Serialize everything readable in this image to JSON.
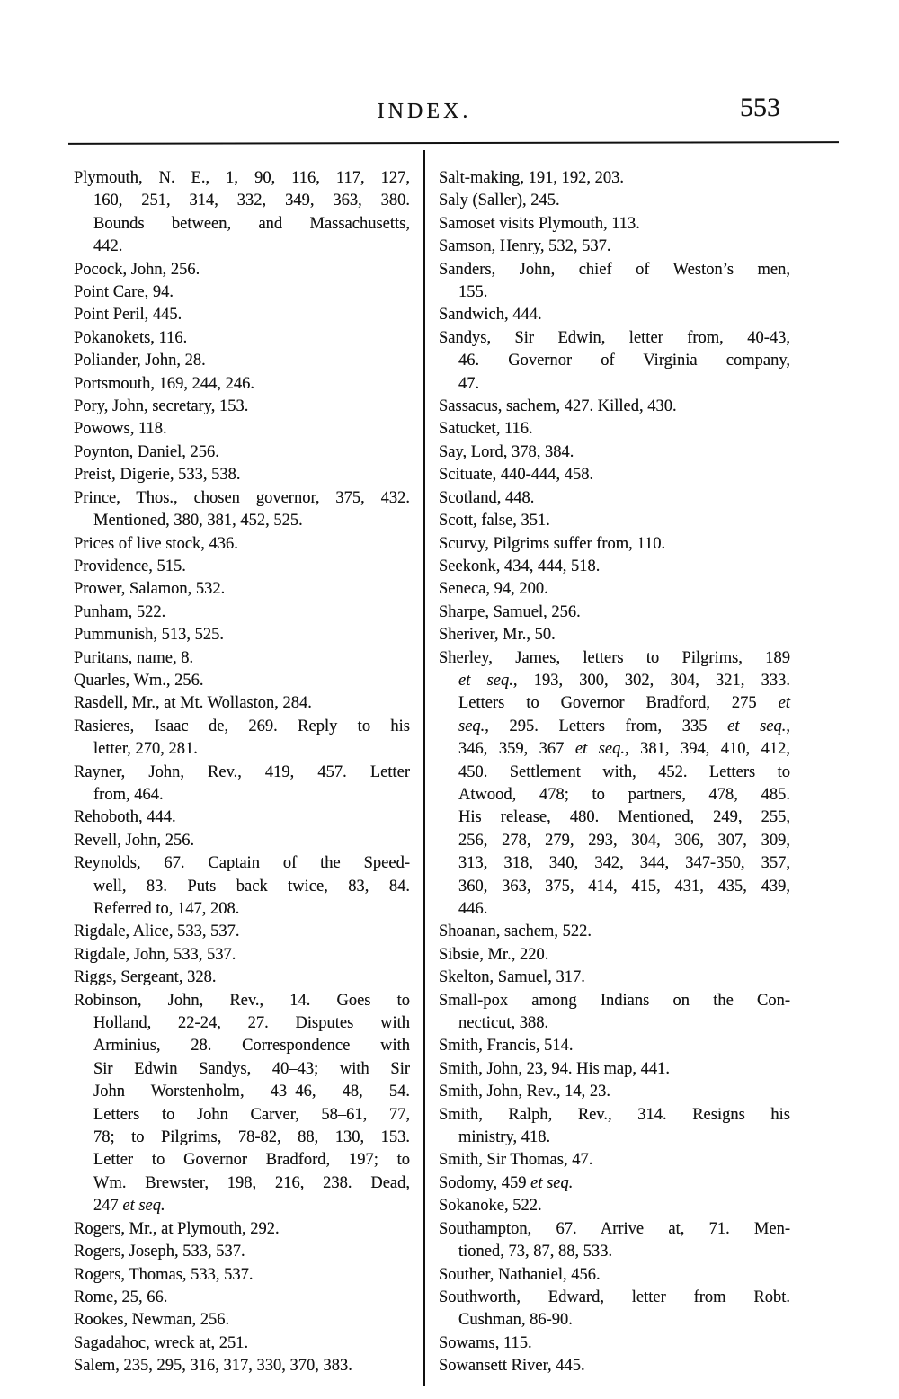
{
  "header": {
    "title": "INDEX.",
    "page_number": "553"
  },
  "colors": {
    "ink": "#151515",
    "paper": "#ffffff",
    "rule": "#101010"
  },
  "columns": {
    "left": [
      {
        "lines": [
          "Plymouth, N. E., 1, 90, 116, 117, 127,",
          "160, 251, 314, 332, 349, 363, 380.",
          "Bounds between, and Massachusetts,",
          "442."
        ]
      },
      {
        "lines": [
          "Pocock, John, 256."
        ]
      },
      {
        "lines": [
          "Point Care, 94."
        ]
      },
      {
        "lines": [
          "Point Peril, 445."
        ]
      },
      {
        "lines": [
          "Pokanokets, 116."
        ]
      },
      {
        "lines": [
          "Poliander, John, 28."
        ]
      },
      {
        "lines": [
          "Portsmouth, 169, 244, 246."
        ]
      },
      {
        "lines": [
          "Pory, John, secretary, 153."
        ]
      },
      {
        "lines": [
          "Powows, 118."
        ]
      },
      {
        "lines": [
          "Poynton, Daniel, 256."
        ]
      },
      {
        "lines": [
          "Preist, Digerie, 533, 538."
        ]
      },
      {
        "lines": [
          "Prince, Thos., chosen governor, 375, 432.",
          "Mentioned, 380, 381, 452, 525."
        ]
      },
      {
        "lines": [
          "Prices of live stock, 436."
        ]
      },
      {
        "lines": [
          "Providence, 515."
        ]
      },
      {
        "lines": [
          "Prower, Salamon, 532."
        ]
      },
      {
        "lines": [
          "Punham, 522."
        ]
      },
      {
        "lines": [
          "Pummunish, 513, 525."
        ]
      },
      {
        "lines": [
          "Puritans, name, 8."
        ]
      },
      {
        "lines": [
          "Quarles, Wm., 256."
        ]
      },
      {
        "lines": [
          "Rasdell, Mr., at Mt. Wollaston, 284."
        ]
      },
      {
        "lines": [
          "Rasieres, Isaac de, 269. Reply to his",
          "letter, 270, 281."
        ]
      },
      {
        "lines": [
          "Rayner, John, Rev., 419, 457. Letter",
          "from, 464."
        ]
      },
      {
        "lines": [
          "Rehoboth, 444."
        ]
      },
      {
        "lines": [
          "Revell, John, 256."
        ]
      },
      {
        "lines": [
          "Reynolds, 67. Captain of the Speed-",
          "well, 83. Puts back twice, 83, 84.",
          "Referred to, 147, 208."
        ]
      },
      {
        "lines": [
          "Rigdale, Alice, 533, 537."
        ]
      },
      {
        "lines": [
          "Rigdale, John, 533, 537."
        ]
      },
      {
        "lines": [
          "Riggs, Sergeant, 328."
        ]
      },
      {
        "lines": [
          "Robinson, John, Rev., 14. Goes to",
          "Holland, 22-24, 27. Disputes with",
          "Arminius, 28. Correspondence with",
          "Sir Edwin Sandys, 40–43; with Sir",
          "John Worstenholm, 43–46, 48, 54.",
          "Letters to John Carver, 58–61, 77,",
          "78; to Pilgrims, 78-82, 88, 130, 153.",
          "Letter to Governor Bradford, 197; to",
          "Wm. Brewster, 198, 216, 238. Dead,",
          "247 *et seq.*"
        ]
      },
      {
        "lines": [
          "Rogers, Mr., at Plymouth, 292."
        ]
      },
      {
        "lines": [
          "Rogers, Joseph, 533, 537."
        ]
      },
      {
        "lines": [
          "Rogers, Thomas, 533, 537."
        ]
      },
      {
        "lines": [
          "Rome, 25, 66."
        ]
      },
      {
        "lines": [
          "Rookes, Newman, 256."
        ]
      },
      {
        "lines": [
          "Sagadahoc, wreck at, 251."
        ]
      },
      {
        "lines": [
          "Salem, 235, 295, 316, 317, 330, 370, 383."
        ]
      }
    ],
    "right": [
      {
        "lines": [
          "Salt-making, 191, 192, 203."
        ]
      },
      {
        "lines": [
          "Saly (Saller), 245."
        ]
      },
      {
        "lines": [
          "Samoset visits Plymouth, 113."
        ]
      },
      {
        "lines": [
          "Samson, Henry, 532, 537."
        ]
      },
      {
        "lines": [
          "Sanders, John, chief of Weston’s men,",
          "155."
        ]
      },
      {
        "lines": [
          "Sandwich, 444."
        ]
      },
      {
        "lines": [
          "Sandys, Sir Edwin, letter from, 40-43,",
          "46. Governor of Virginia company,",
          "47."
        ]
      },
      {
        "lines": [
          "Sassacus, sachem, 427. Killed, 430."
        ]
      },
      {
        "lines": [
          "Satucket, 116."
        ]
      },
      {
        "lines": [
          "Say, Lord, 378, 384."
        ]
      },
      {
        "lines": [
          "Scituate, 440-444, 458."
        ]
      },
      {
        "lines": [
          "Scotland, 448."
        ]
      },
      {
        "lines": [
          "Scott, false, 351."
        ]
      },
      {
        "lines": [
          "Scurvy, Pilgrims suffer from, 110."
        ]
      },
      {
        "lines": [
          "Seekonk, 434, 444, 518."
        ]
      },
      {
        "lines": [
          "Seneca, 94, 200."
        ]
      },
      {
        "lines": [
          "Sharpe, Samuel, 256."
        ]
      },
      {
        "lines": [
          "Sheriver, Mr., 50."
        ]
      },
      {
        "lines": [
          "Sherley, James, letters to Pilgrims, 189",
          "*et seq.*, 193, 300, 302, 304, 321, 333.",
          "Letters to Governor Bradford, 275 *et*",
          "*seq.*, 295. Letters from, 335 *et seq.*,",
          "346, 359, 367 *et seq.*, 381, 394, 410, 412,",
          "450. Settlement with, 452. Letters to",
          "Atwood, 478; to partners, 478, 485.",
          "His release, 480. Mentioned, 249, 255,",
          "256, 278, 279, 293, 304, 306, 307, 309,",
          "313, 318, 340, 342, 344, 347-350, 357,",
          "360, 363, 375, 414, 415, 431, 435, 439,",
          "446."
        ]
      },
      {
        "lines": [
          "Shoanan, sachem, 522."
        ]
      },
      {
        "lines": [
          "Sibsie, Mr., 220."
        ]
      },
      {
        "lines": [
          "Skelton, Samuel, 317."
        ]
      },
      {
        "lines": [
          "Small-pox among Indians on the Con-",
          "necticut, 388."
        ]
      },
      {
        "lines": [
          "Smith, Francis, 514."
        ]
      },
      {
        "lines": [
          "Smith, John, 23, 94. His map, 441."
        ]
      },
      {
        "lines": [
          "Smith, John, Rev., 14, 23."
        ]
      },
      {
        "lines": [
          "Smith, Ralph, Rev., 314. Resigns his",
          "ministry, 418."
        ]
      },
      {
        "lines": [
          "Smith, Sir Thomas, 47."
        ]
      },
      {
        "lines": [
          "Sodomy, 459 *et seq.*"
        ]
      },
      {
        "lines": [
          "Sokanoke, 522."
        ]
      },
      {
        "lines": [
          "Southampton, 67. Arrive at, 71. Men-",
          "tioned, 73, 87, 88, 533."
        ]
      },
      {
        "lines": [
          "Souther, Nathaniel, 456."
        ]
      },
      {
        "lines": [
          "Southworth, Edward, letter from Robt.",
          "Cushman, 86-90."
        ]
      },
      {
        "lines": [
          "Sowams, 115."
        ]
      },
      {
        "lines": [
          "Sowansett River, 445."
        ]
      }
    ]
  }
}
